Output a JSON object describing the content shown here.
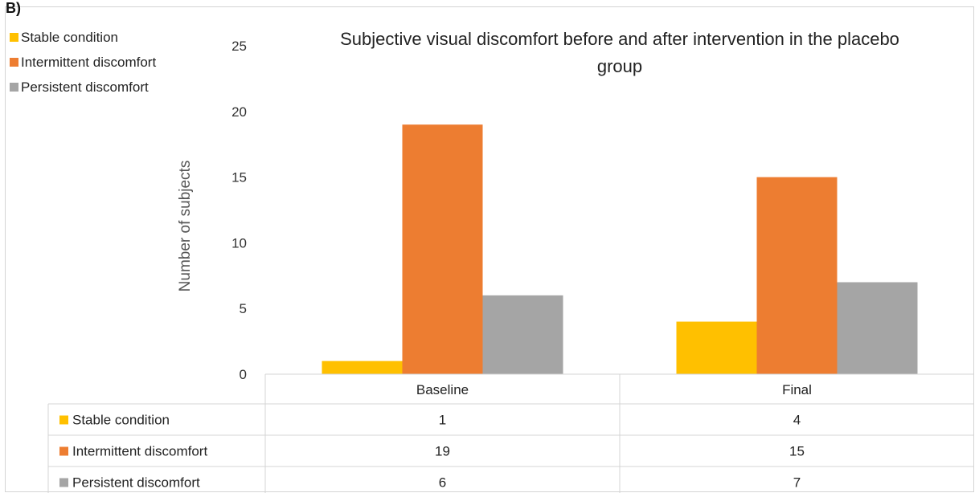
{
  "panel_letter": "B)",
  "chart_data": {
    "type": "bar",
    "title": "Subjective visual discomfort before and after intervention in the placebo group",
    "title_lines": [
      "Subjective visual discomfort before and after intervention in the placebo",
      "group"
    ],
    "xlabel": "",
    "ylabel": "Number of subjects",
    "ylim": [
      0,
      25
    ],
    "yticks": [
      0,
      5,
      10,
      15,
      20,
      25
    ],
    "categories": [
      "Baseline",
      "Final"
    ],
    "series": [
      {
        "name": "Stable condition",
        "values": [
          1,
          4
        ],
        "color": "#FFC000"
      },
      {
        "name": "Intermittent discomfort",
        "values": [
          19,
          15
        ],
        "color": "#ED7D31"
      },
      {
        "name": "Persistent discomfort",
        "values": [
          6,
          7
        ],
        "color": "#A5A5A5"
      }
    ],
    "legend_position": "top-left",
    "grid": false,
    "data_table": true
  }
}
